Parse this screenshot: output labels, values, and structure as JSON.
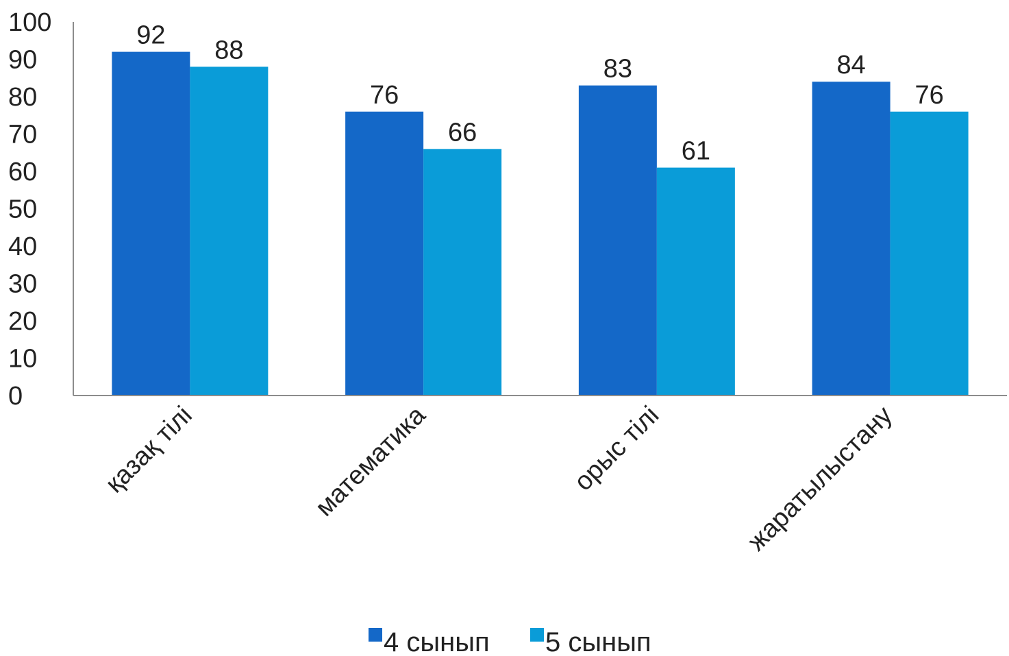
{
  "chart_data": {
    "type": "bar",
    "categories": [
      "қазақ тілі",
      "математика",
      "орыс тілі",
      "жаратылыстану"
    ],
    "series": [
      {
        "name": "4 сынып",
        "color": "#1468c8",
        "values": [
          92,
          76,
          83,
          84
        ]
      },
      {
        "name": "5 сынып",
        "color": "#0a9cd8",
        "values": [
          88,
          66,
          61,
          76
        ]
      }
    ],
    "ylim": [
      0,
      100
    ],
    "yticks": [
      0,
      10,
      20,
      30,
      40,
      50,
      60,
      70,
      80,
      90,
      100
    ],
    "grid": false,
    "legend_position": "bottom",
    "axis_color": "#8c8c8c"
  }
}
